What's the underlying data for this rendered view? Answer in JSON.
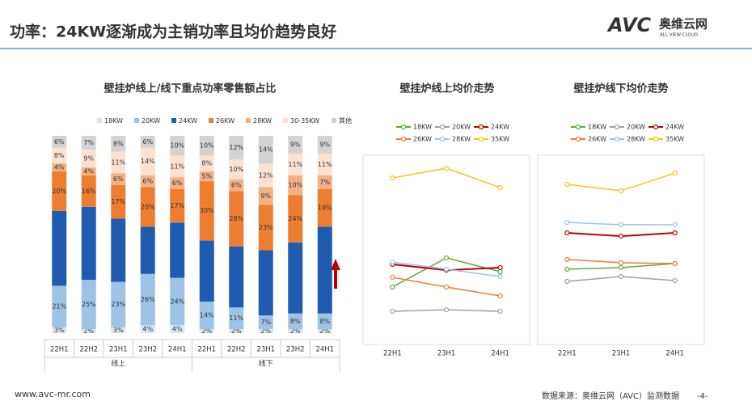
{
  "page": {
    "title": "功率：24KW逐渐成为主销功率且均价趋势良好",
    "logo_mark": "AVC",
    "logo_name": "奥维云网",
    "logo_sub": "ALL VIEW CLOUD",
    "website": "www.avc-mr.com",
    "source": "数据来源：奥维云网（AVC）监测数据",
    "page_number": "-4-"
  },
  "chart_data": [
    {
      "type": "stacked-bar",
      "title": "壁挂炉线上/线下重点功率零售额占比",
      "categories": [
        "22H1",
        "22H2",
        "23H1",
        "23H2",
        "24H1",
        "22H1",
        "22H2",
        "23H1",
        "23H2",
        "24H1"
      ],
      "groups": [
        "线上",
        "线下"
      ],
      "ylim": [
        0,
        100
      ],
      "series": [
        {
          "name": "18KW",
          "color": "#dbe5f1",
          "values": [
            3,
            2,
            3,
            4,
            4,
            2,
            2,
            2,
            2,
            2
          ],
          "value_labels": [
            "3%",
            "2%",
            "3%",
            "4%",
            "4%",
            "2%",
            "2%",
            "2%",
            "2%",
            "2%"
          ]
        },
        {
          "name": "20KW",
          "color": "#9dc3e6",
          "values": [
            21,
            25,
            23,
            26,
            24,
            14,
            11,
            7,
            8,
            8
          ],
          "value_labels": [
            "21%",
            "25%",
            "23%",
            "26%",
            "24%",
            "14%",
            "11%",
            "7%",
            "8%",
            "8%"
          ]
        },
        {
          "name": "24KW",
          "color": "#1f5cb0",
          "values": [
            38,
            37,
            32,
            24,
            28,
            31,
            31,
            33,
            36,
            44
          ]
        },
        {
          "name": "26KW",
          "color": "#ed7d31",
          "values": [
            20,
            16,
            17,
            20,
            17,
            30,
            28,
            23,
            24,
            19
          ],
          "value_labels": [
            "20%",
            "16%",
            "17%",
            "20%",
            "17%",
            "30%",
            "28%",
            "23%",
            "24%",
            "19%"
          ]
        },
        {
          "name": "28KW",
          "color": "#f4b183",
          "values": [
            4,
            4,
            6,
            6,
            6,
            5,
            6,
            9,
            10,
            7
          ],
          "value_labels": [
            "4%",
            "4%",
            "6%",
            "6%",
            "6%",
            "5%",
            "6%",
            "9%",
            "10%",
            "7%"
          ]
        },
        {
          "name": "30-35KW",
          "color": "#fbe2d0",
          "values": [
            8,
            9,
            11,
            14,
            11,
            8,
            10,
            12,
            11,
            11
          ],
          "value_labels": [
            "8%",
            "9%",
            "11%",
            "14%",
            "11%",
            "8%",
            "10%",
            "12%",
            "11%",
            "11%"
          ]
        },
        {
          "name": "其他",
          "color": "#d3d3d3",
          "values": [
            6,
            7,
            8,
            6,
            10,
            10,
            12,
            14,
            9,
            9
          ],
          "value_labels": [
            "6%",
            "7%",
            "8%",
            "6%",
            "10%",
            "10%",
            "12%",
            "14%",
            "9%",
            "9%"
          ]
        }
      ]
    },
    {
      "type": "line",
      "title": "壁挂炉线上均价走势",
      "categories": [
        "22H1",
        "23H1",
        "24H1"
      ],
      "ylim": [
        0,
        100
      ],
      "series": [
        {
          "name": "18KW",
          "color": "#5aae3c",
          "values": [
            27.1,
            42.1,
            35
          ]
        },
        {
          "name": "20KW",
          "color": "#a0a0a0",
          "values": [
            14.6,
            15.4,
            14.6
          ]
        },
        {
          "name": "24KW",
          "color": "#c00000",
          "values": [
            38.8,
            35.8,
            37.1
          ]
        },
        {
          "name": "26KW",
          "color": "#ed7d31",
          "values": [
            32.1,
            27.1,
            22.5
          ]
        },
        {
          "name": "28KW",
          "color": "#9dc3e6",
          "values": [
            40,
            36.3,
            32.5
          ]
        },
        {
          "name": "35KW",
          "color": "#f5c518",
          "values": [
            83.3,
            88.3,
            78.3
          ]
        }
      ]
    },
    {
      "type": "line",
      "title": "壁挂炉线下均价走势",
      "categories": [
        "22H1",
        "23H1",
        "24H1"
      ],
      "ylim": [
        0,
        100
      ],
      "series": [
        {
          "name": "18KW",
          "color": "#5aae3c",
          "values": [
            36.3,
            37.1,
            39.2
          ]
        },
        {
          "name": "20KW",
          "color": "#a0a0a0",
          "values": [
            30,
            32.5,
            30.4
          ]
        },
        {
          "name": "24KW",
          "color": "#c00000",
          "values": [
            55,
            53.3,
            55
          ]
        },
        {
          "name": "26KW",
          "color": "#ed7d31",
          "values": [
            41.3,
            39.6,
            39.2
          ]
        },
        {
          "name": "28KW",
          "color": "#9dc3e6",
          "values": [
            60.4,
            59.2,
            59.2
          ]
        },
        {
          "name": "35KW",
          "color": "#f5c518",
          "values": [
            80,
            76.7,
            85.8
          ]
        }
      ]
    }
  ]
}
